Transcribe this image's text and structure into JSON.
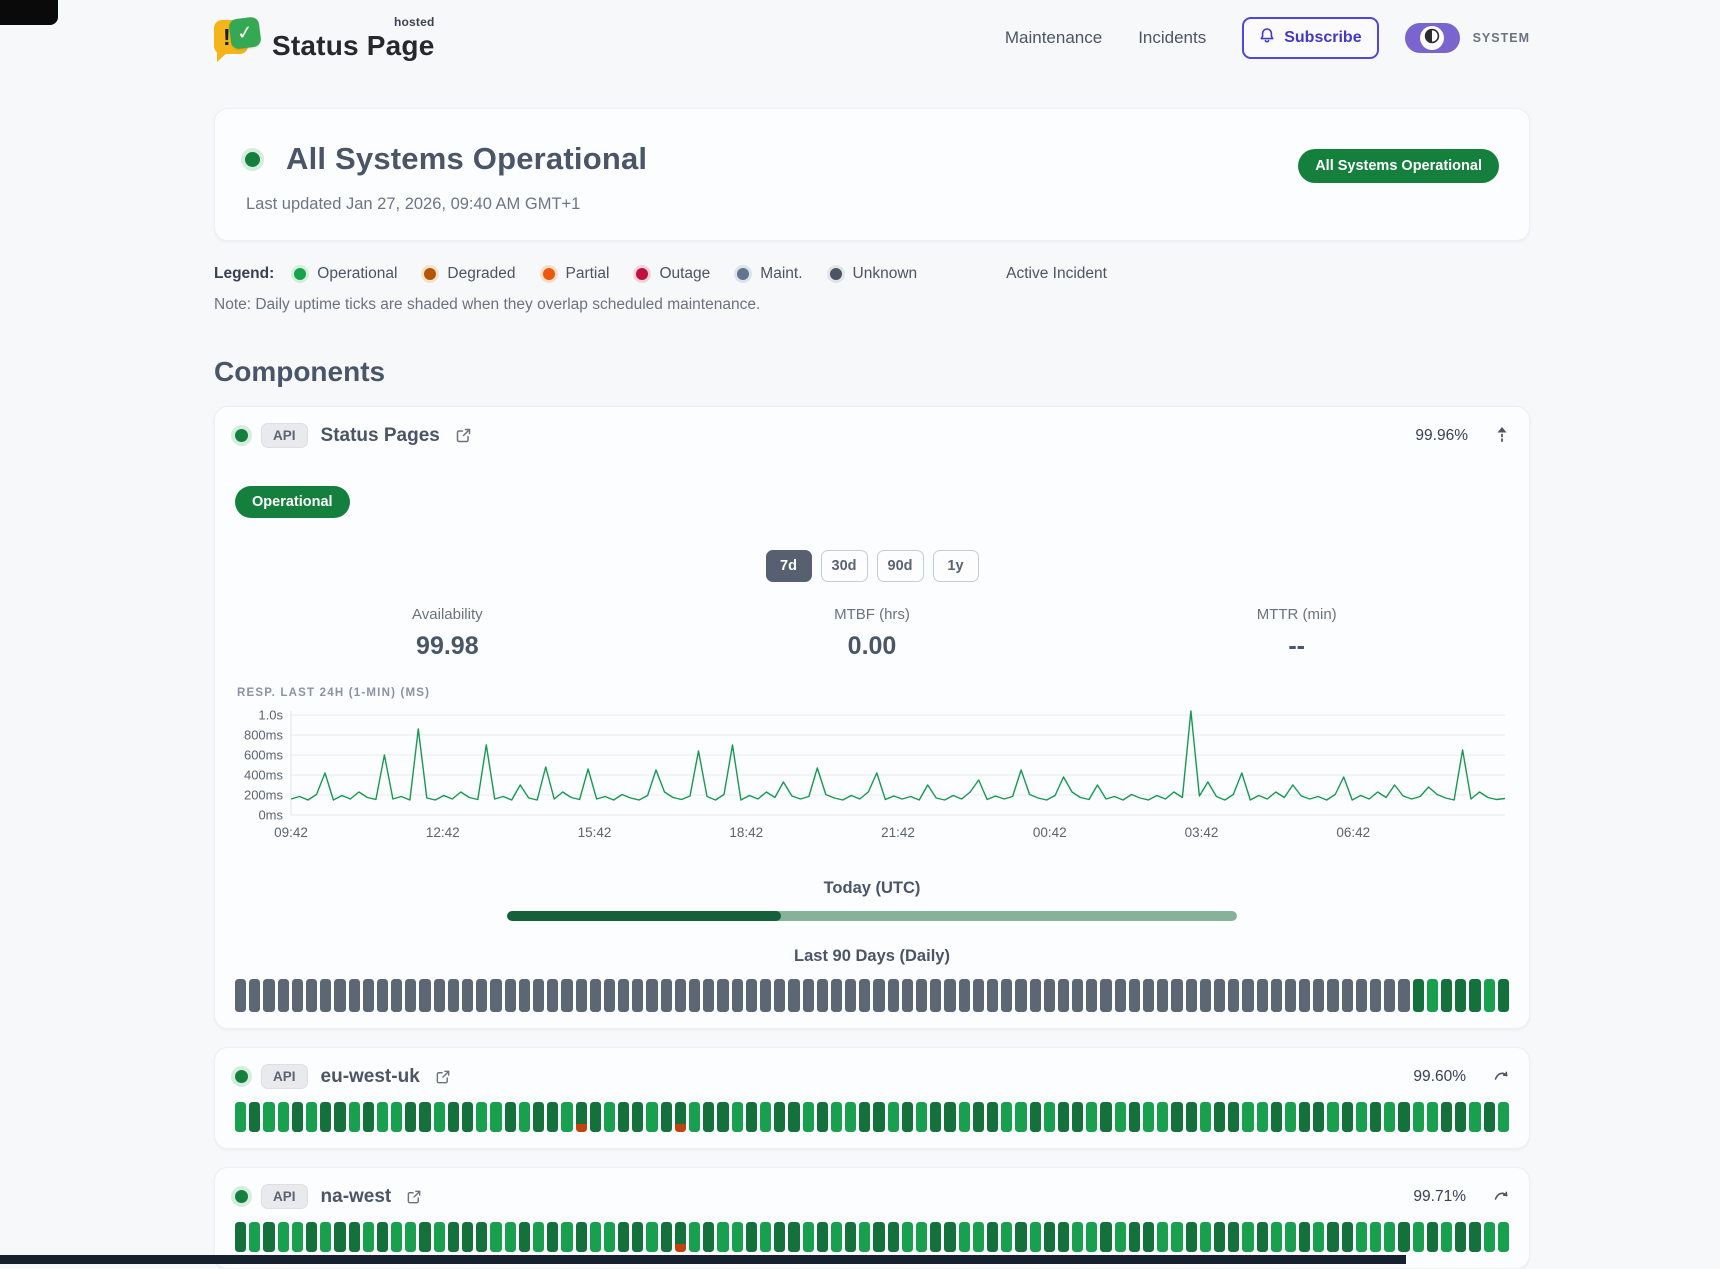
{
  "header": {
    "brand": {
      "name": "Status Page",
      "tag": "hosted",
      "glyph_exclaim": "!",
      "glyph_check": "✓"
    },
    "nav": [
      {
        "label": "Maintenance"
      },
      {
        "label": "Incidents"
      }
    ],
    "subscribe_label": "Subscribe",
    "theme_label": "SYSTEM"
  },
  "hero": {
    "title": "All Systems Operational",
    "updated": "Last updated Jan 27, 2026, 09:40 AM GMT+1",
    "badge": "All Systems Operational"
  },
  "legend": {
    "label": "Legend:",
    "items": [
      {
        "label": "Operational",
        "color": "#16a34a",
        "ring": "#d3eedd"
      },
      {
        "label": "Degraded",
        "color": "#b45309",
        "ring": "#f1e3c6"
      },
      {
        "label": "Partial",
        "color": "#ea580c",
        "ring": "#f9ddc9"
      },
      {
        "label": "Outage",
        "color": "#be123c",
        "ring": "#f6d2da"
      },
      {
        "label": "Maint.",
        "color": "#64748b",
        "ring": "#dbe3ec"
      },
      {
        "label": "Unknown",
        "color": "#4b5563",
        "ring": "#e2e4e8"
      }
    ],
    "active_incident_label": "Active Incident",
    "note": "Note: Daily uptime ticks are shaded when they overlap scheduled maintenance."
  },
  "sections": {
    "components_title": "Components"
  },
  "palette": {
    "O": "#18a04e",
    "o": "#14713c",
    "u": "#5d6673",
    "p": "#c2410c"
  },
  "components": [
    {
      "badge": "API",
      "name": "Status Pages",
      "uptime": "99.96%",
      "status_badge": "Operational",
      "range_buttons": [
        {
          "label": "7d",
          "active": true
        },
        {
          "label": "30d",
          "active": false
        },
        {
          "label": "90d",
          "active": false
        },
        {
          "label": "1y",
          "active": false
        }
      ],
      "stats": [
        {
          "label": "Availability",
          "value": "99.98"
        },
        {
          "label": "MTBF (hrs)",
          "value": "0.00"
        },
        {
          "label": "MTTR (min)",
          "value": "--"
        }
      ],
      "chart": {
        "type": "line",
        "title": "RESP. LAST 24H (1-MIN) (MS)",
        "color": "#169a52",
        "ylim": [
          0,
          1050
        ],
        "y_ticks": [
          "1.0s",
          "800ms",
          "600ms",
          "400ms",
          "200ms",
          "0ms"
        ],
        "x_ticks": [
          "09:42",
          "12:42",
          "15:42",
          "18:42",
          "21:42",
          "00:42",
          "03:42",
          "06:42"
        ],
        "values": [
          160,
          185,
          150,
          205,
          420,
          150,
          195,
          160,
          230,
          175,
          155,
          600,
          160,
          185,
          150,
          860,
          170,
          150,
          195,
          160,
          230,
          175,
          155,
          700,
          160,
          185,
          150,
          300,
          170,
          150,
          480,
          160,
          230,
          175,
          155,
          460,
          160,
          185,
          150,
          205,
          170,
          150,
          195,
          450,
          230,
          175,
          155,
          190,
          640,
          185,
          150,
          205,
          700,
          150,
          195,
          160,
          230,
          175,
          330,
          190,
          160,
          185,
          470,
          205,
          170,
          150,
          195,
          160,
          230,
          420,
          155,
          190,
          160,
          185,
          150,
          300,
          170,
          150,
          195,
          160,
          230,
          350,
          155,
          190,
          160,
          185,
          450,
          205,
          170,
          150,
          195,
          380,
          230,
          175,
          155,
          300,
          160,
          185,
          150,
          205,
          170,
          150,
          195,
          160,
          230,
          175,
          1040,
          190,
          330,
          185,
          150,
          205,
          420,
          150,
          195,
          160,
          230,
          175,
          300,
          190,
          160,
          185,
          150,
          205,
          380,
          150,
          195,
          160,
          230,
          175,
          300,
          190,
          160,
          185,
          280,
          205,
          170,
          150,
          650,
          160,
          230,
          175,
          155,
          165
        ]
      },
      "today_label": "Today (UTC)",
      "today_progress": 0.375,
      "history_label": "Last 90 Days (Daily)",
      "history": [
        "uuuuuuuuuu",
        "uuuuuuuuuu",
        "uuuuuuuuuu",
        "uuuuuuuuuu",
        "uuuuuuuuuu",
        "uuuuuuuuuu",
        "uuuuuuuuuu",
        "uuuuuuuuuu",
        "uuuoOoooOo"
      ]
    },
    {
      "badge": "API",
      "name": "eu-west-uk",
      "uptime": "99.60%",
      "history": [
        "OoOOoOooOo",
        "OOooOooOOo",
        "OooOpoOooO",
        "opOooOoOoo",
        "OoOOooOoOo",
        "oOooOOoOoo",
        "OoOoOOooOo",
        "oOOoOooOoO",
        "oOoOOooOoO"
      ]
    },
    {
      "badge": "API",
      "name": "na-west",
      "uptime": "99.71%",
      "history": [
        "oOoOOoOooO",
        "oOOoOoooOO",
        "oOoOoOOooO",
        "opOoOOoOoo",
        "OoOoOooOOo",
        "oOOoOoOooO",
        "OoOooOOoOo",
        "oOoOOoOooO",
        "OOoOoOooOO"
      ]
    }
  ]
}
